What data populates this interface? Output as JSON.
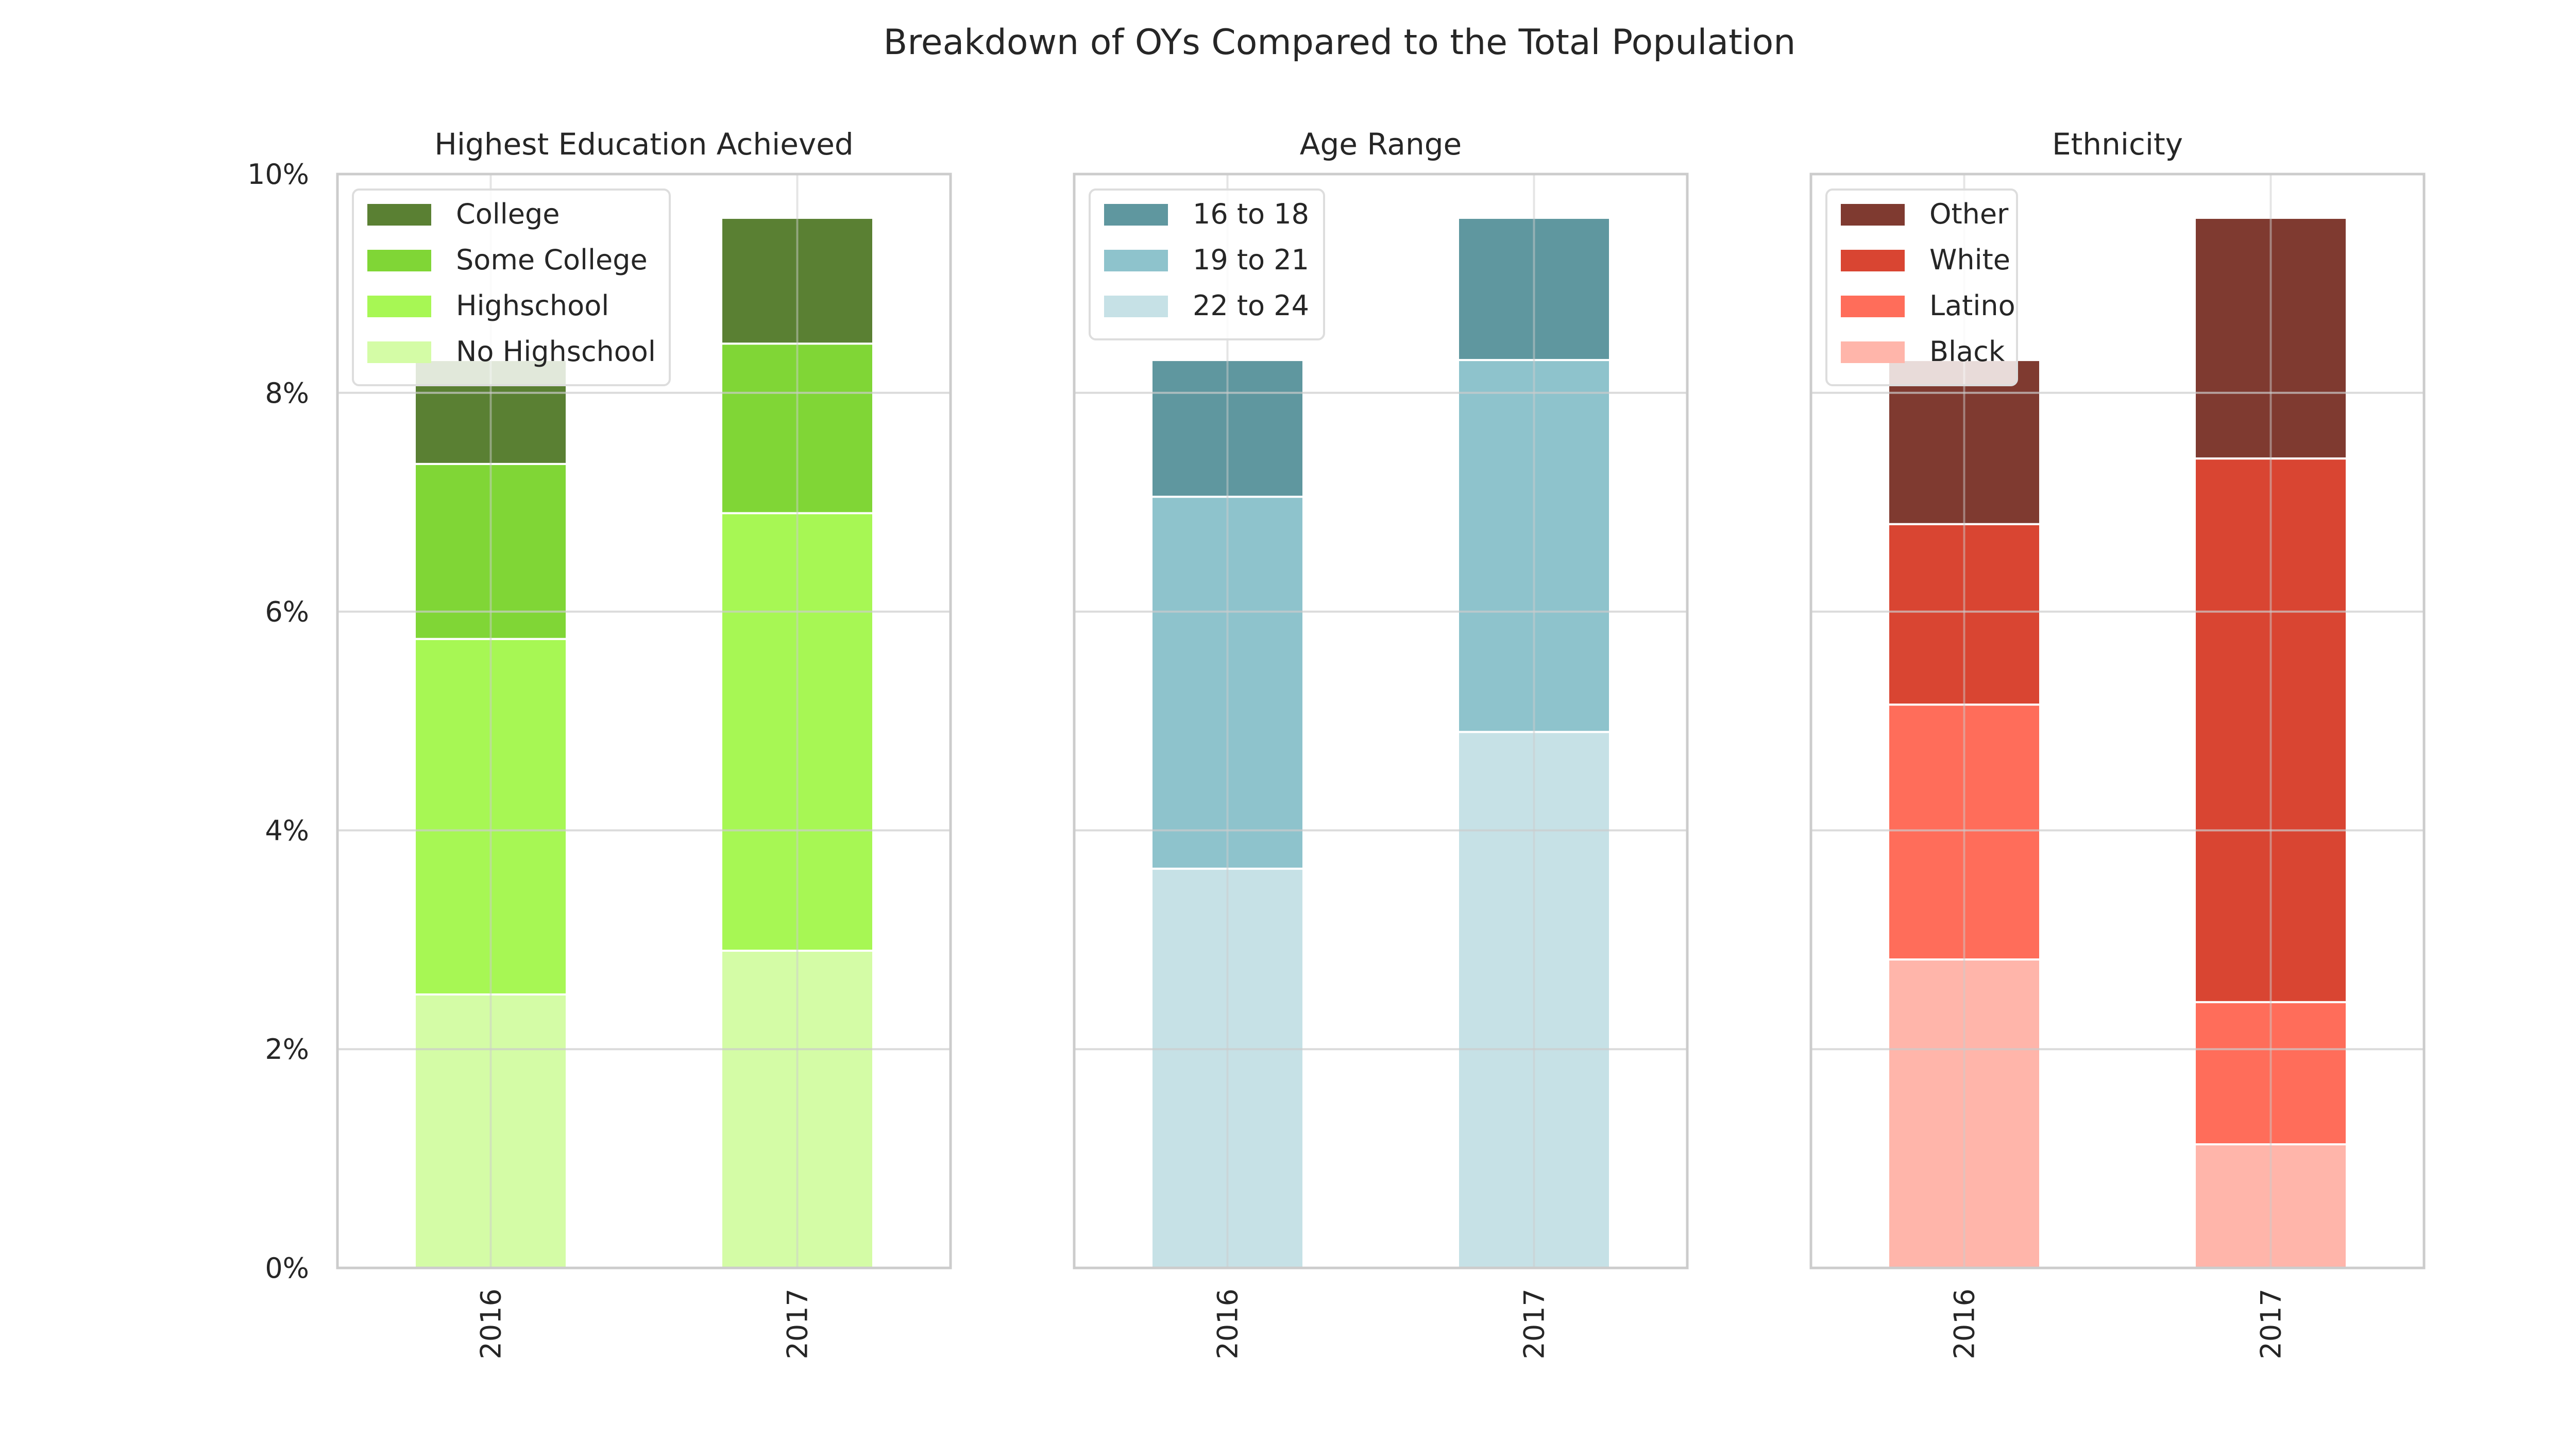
{
  "figure": {
    "title": "Breakdown of OYs Compared to the Total Population"
  },
  "chart_data": [
    {
      "type": "bar",
      "stacked": true,
      "title": "Highest Education Achieved",
      "xlabel": "",
      "ylabel": "",
      "categories": [
        "2016",
        "2017"
      ],
      "ylim": [
        0,
        10
      ],
      "y_ticks": [
        0,
        2,
        4,
        6,
        8,
        10
      ],
      "y_tick_labels": [
        "0%",
        "2%",
        "4%",
        "6%",
        "8%",
        "10%"
      ],
      "grid": true,
      "legend_position": "top-left",
      "series": [
        {
          "name": "No Highschool",
          "values": [
            2.5,
            2.9
          ],
          "color": "#d4fca6"
        },
        {
          "name": "Highschool",
          "values": [
            3.25,
            4.0
          ],
          "color": "#a7f754"
        },
        {
          "name": "Some College",
          "values": [
            1.6,
            1.55
          ],
          "color": "#80d636"
        },
        {
          "name": "College",
          "values": [
            0.95,
            1.15
          ],
          "color": "#5a8033"
        }
      ],
      "legend_order": [
        "College",
        "Some College",
        "Highschool",
        "No Highschool"
      ]
    },
    {
      "type": "bar",
      "stacked": true,
      "title": "Age Range",
      "xlabel": "",
      "ylabel": "",
      "categories": [
        "2016",
        "2017"
      ],
      "ylim": [
        0,
        10
      ],
      "y_ticks": [
        0,
        2,
        4,
        6,
        8,
        10
      ],
      "y_tick_labels": [],
      "grid": true,
      "legend_position": "top-left",
      "series": [
        {
          "name": "22 to 24",
          "values": [
            3.65,
            4.9
          ],
          "color": "#c6e1e6"
        },
        {
          "name": "19 to 21",
          "values": [
            3.4,
            3.4
          ],
          "color": "#8ec3cc"
        },
        {
          "name": "16 to 18",
          "values": [
            1.25,
            1.3
          ],
          "color": "#5f979f"
        }
      ],
      "legend_order": [
        "16 to 18",
        "19 to 21",
        "22 to 24"
      ]
    },
    {
      "type": "bar",
      "stacked": true,
      "title": "Ethnicity",
      "xlabel": "",
      "ylabel": "",
      "categories": [
        "2016",
        "2017"
      ],
      "ylim": [
        0,
        10
      ],
      "y_ticks": [
        0,
        2,
        4,
        6,
        8,
        10
      ],
      "y_tick_labels": [],
      "grid": true,
      "legend_position": "top-left",
      "series": [
        {
          "name": "Black",
          "values": [
            2.82,
            1.13
          ],
          "color": "#ffb5aa"
        },
        {
          "name": "Latino",
          "values": [
            2.33,
            1.3
          ],
          "color": "#ff6d5a"
        },
        {
          "name": "White",
          "values": [
            1.65,
            4.97
          ],
          "color": "#d94532"
        },
        {
          "name": "Other",
          "values": [
            1.5,
            2.2
          ],
          "color": "#7f3a30"
        }
      ],
      "legend_order": [
        "Other",
        "White",
        "Latino",
        "Black"
      ]
    }
  ]
}
